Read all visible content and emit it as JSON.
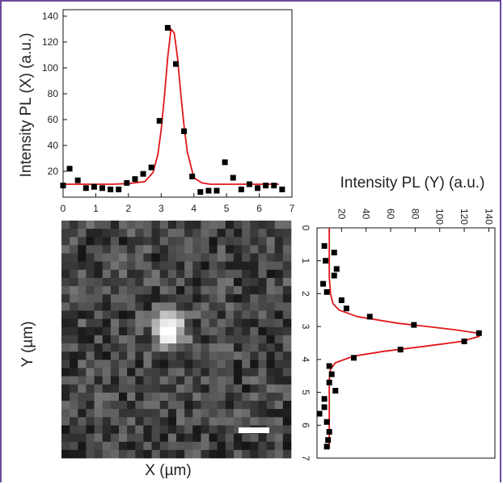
{
  "colors": {
    "frame": "#6b4a9a",
    "fit_line": "#e0161b",
    "markers": "#000000"
  },
  "chart_data": [
    {
      "type": "scatter",
      "title": "",
      "xlabel": "",
      "ylabel": "Intensity PL (X) (a.u.)",
      "xlim": [
        0,
        7
      ],
      "ylim": [
        0,
        145
      ],
      "xticks": [
        "0",
        "1",
        "2",
        "3",
        "4",
        "5",
        "6",
        "7"
      ],
      "yticks": [
        "20",
        "40",
        "60",
        "80",
        "100",
        "120",
        "140"
      ],
      "series": [
        {
          "type": "scatter",
          "x": [
            0.0,
            0.2,
            0.45,
            0.7,
            0.95,
            1.2,
            1.45,
            1.7,
            1.95,
            2.2,
            2.45,
            2.7,
            2.95,
            3.2,
            3.45,
            3.7,
            3.95,
            4.2,
            4.45,
            4.7,
            4.95,
            5.2,
            5.45,
            5.7,
            5.95,
            6.2,
            6.45,
            6.7
          ],
          "y": [
            9,
            22,
            13,
            7,
            8,
            7,
            6,
            6,
            11,
            14,
            18,
            23,
            59,
            131,
            103,
            51,
            16,
            4,
            5,
            5,
            27,
            15,
            6,
            10,
            7,
            9,
            9,
            6
          ]
        },
        {
          "type": "line",
          "x": [
            0,
            0.5,
            1,
            1.5,
            2,
            2.5,
            2.75,
            2.9,
            3.0,
            3.1,
            3.2,
            3.3,
            3.4,
            3.5,
            3.6,
            3.7,
            3.8,
            4.0,
            4.25,
            4.5,
            5,
            5.5,
            6,
            6.6
          ],
          "y": [
            10,
            10,
            10,
            10,
            10.5,
            12,
            19,
            33,
            52,
            78,
            108,
            130,
            127,
            108,
            80,
            55,
            35,
            15,
            11,
            10,
            10,
            10,
            10,
            10
          ]
        }
      ]
    },
    {
      "type": "scatter",
      "title": "Intensity PL (Y) (a.u.)",
      "xlabel": "Intensity PL (Y) (a.u.)",
      "ylabel": "Y (µm)",
      "xlim": [
        0,
        145
      ],
      "ylim": [
        0,
        7
      ],
      "xticks": [
        "20",
        "40",
        "60",
        "80",
        "100",
        "120",
        "140"
      ],
      "yticks": [
        "0",
        "1",
        "2",
        "3",
        "4",
        "5",
        "6",
        "7"
      ],
      "series": [
        {
          "type": "scatter",
          "position": [
            0.55,
            0.75,
            1.0,
            1.25,
            1.45,
            1.7,
            1.95,
            2.2,
            2.45,
            2.7,
            2.95,
            3.2,
            3.45,
            3.7,
            3.95,
            4.2,
            4.45,
            4.7,
            4.95,
            5.2,
            5.45,
            5.65,
            5.9,
            6.2,
            6.45,
            6.65
          ],
          "intensity": [
            6,
            14,
            7,
            16,
            14,
            5,
            8,
            20,
            24,
            43,
            79,
            132,
            120,
            68,
            30,
            10,
            12,
            10,
            15,
            6,
            6,
            2,
            8,
            10,
            9,
            8
          ]
        },
        {
          "type": "line",
          "position": [
            0,
            0.5,
            1,
            1.5,
            2,
            2.3,
            2.5,
            2.7,
            2.9,
            3.0,
            3.1,
            3.2,
            3.3,
            3.45,
            3.6,
            3.75,
            3.9,
            4.1,
            4.3,
            4.6,
            5,
            5.5,
            6,
            6.7
          ],
          "intensity": [
            10,
            10,
            10,
            10,
            11,
            13,
            18,
            33,
            66,
            90,
            113,
            131,
            132,
            118,
            88,
            55,
            30,
            15,
            11,
            10,
            10,
            10,
            10,
            10
          ]
        }
      ]
    },
    {
      "type": "heatmap",
      "xlabel": "X (µm)",
      "ylabel": "Y (µm)",
      "colormap": "grayscale",
      "description_values": "PL intensity map; bright spot centred near x≈3.3 µm, y≈3.2 µm",
      "scale_bar": true
    }
  ]
}
